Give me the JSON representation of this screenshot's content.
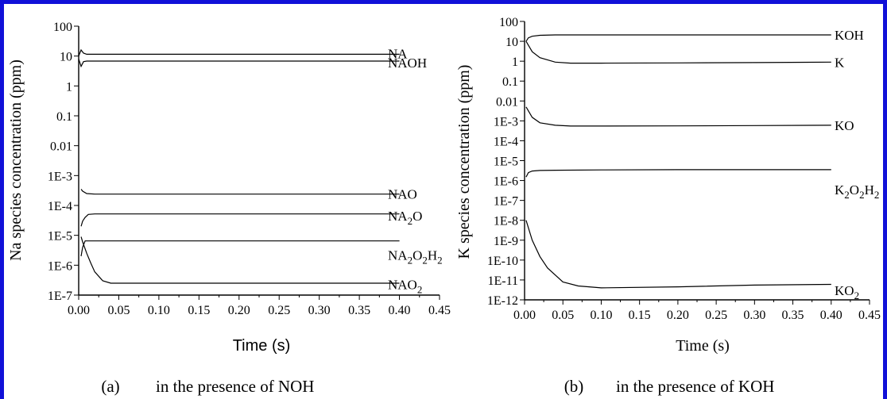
{
  "chart_data": [
    {
      "type": "line",
      "panel": "a",
      "caption_tag": "(a)",
      "caption": "in the presence of NOH",
      "xlabel": "Time (s)",
      "ylabel": "Na species concentration (ppm)",
      "xlim": [
        0,
        0.45
      ],
      "ylim": [
        1e-07,
        100
      ],
      "y_scale": "log",
      "x_ticks": [
        "0.00",
        "0.05",
        "0.10",
        "0.15",
        "0.20",
        "0.25",
        "0.30",
        "0.35",
        "0.40",
        "0.45"
      ],
      "x_tick_values": [
        0,
        0.05,
        0.1,
        0.15,
        0.2,
        0.25,
        0.3,
        0.35,
        0.4,
        0.45
      ],
      "y_ticks": [
        "100",
        "10",
        "1",
        "0.1",
        "0.01",
        "1E-3",
        "1E-4",
        "1E-5",
        "1E-6",
        "1E-7"
      ],
      "y_tick_values": [
        100,
        10,
        1,
        0.1,
        0.01,
        0.001,
        0.0001,
        1e-05,
        1e-06,
        1e-07
      ],
      "series": [
        {
          "name": "NA",
          "x": [
            0,
            0.003,
            0.006,
            0.01,
            0.05,
            0.1,
            0.2,
            0.3,
            0.4
          ],
          "y": [
            10,
            16,
            12.5,
            11.5,
            11.5,
            11.5,
            11.5,
            11.5,
            11.5
          ],
          "label_y": 12
        },
        {
          "name": "NAOH",
          "x": [
            0,
            0.003,
            0.006,
            0.01,
            0.05,
            0.1,
            0.2,
            0.3,
            0.4
          ],
          "y": [
            8,
            4.5,
            6.5,
            6.8,
            6.8,
            6.8,
            6.8,
            6.8,
            6.8
          ],
          "label_y": 6
        },
        {
          "name": "NAO",
          "x": [
            0.003,
            0.005,
            0.01,
            0.02,
            0.1,
            0.2,
            0.3,
            0.4
          ],
          "y": [
            0.00035,
            0.0003,
            0.00025,
            0.00024,
            0.00024,
            0.00024,
            0.00024,
            0.00024
          ],
          "label_y": 0.00024
        },
        {
          "name": "NA₂O",
          "x": [
            0.003,
            0.005,
            0.008,
            0.012,
            0.02,
            0.1,
            0.2,
            0.3,
            0.4
          ],
          "y": [
            2e-05,
            3e-05,
            4e-05,
            5e-05,
            5.2e-05,
            5.2e-05,
            5.2e-05,
            5.2e-05,
            5.2e-05
          ],
          "label_y": 4.5e-05
        },
        {
          "name": "NA₂O₂H₂",
          "x": [
            0.003,
            0.005,
            0.008,
            0.012,
            0.02,
            0.1,
            0.2,
            0.3,
            0.4
          ],
          "y": [
            2e-06,
            4e-06,
            6.5e-06,
            6.5e-06,
            6.5e-06,
            6.5e-06,
            6.5e-06,
            6.5e-06,
            6.5e-06
          ],
          "label_y": 2.2e-06
        },
        {
          "name": "NAO₂",
          "x": [
            0.003,
            0.005,
            0.01,
            0.015,
            0.02,
            0.03,
            0.04,
            0.1,
            0.2,
            0.3,
            0.4
          ],
          "y": [
            9e-06,
            6e-06,
            2.5e-06,
            1.2e-06,
            6e-07,
            3e-07,
            2.5e-07,
            2.5e-07,
            2.5e-07,
            2.5e-07,
            2.5e-07
          ],
          "label_y": 2.3e-07
        }
      ]
    },
    {
      "type": "line",
      "panel": "b",
      "caption_tag": "(b)",
      "caption": "in the presence of KOH",
      "xlabel": "Time (s)",
      "ylabel": "K species concentration (ppm)",
      "xlim": [
        0,
        0.45
      ],
      "ylim": [
        1e-12,
        100
      ],
      "y_scale": "log",
      "x_ticks": [
        "0.00",
        "0.05",
        "0.10",
        "0.15",
        "0.20",
        "0.25",
        "0.30",
        "0.35",
        "0.40",
        "0.45"
      ],
      "x_tick_values": [
        0,
        0.05,
        0.1,
        0.15,
        0.2,
        0.25,
        0.3,
        0.35,
        0.4,
        0.45
      ],
      "y_ticks": [
        "100",
        "10",
        "1",
        "0.1",
        "0.01",
        "1E-3",
        "1E-4",
        "1E-5",
        "1E-6",
        "1E-7",
        "1E-8",
        "1E-9",
        "1E-10",
        "1E-11",
        "1E-12"
      ],
      "y_tick_values": [
        100,
        10,
        1,
        0.1,
        0.01,
        0.001,
        0.0001,
        1e-05,
        1e-06,
        1e-07,
        1e-08,
        1e-09,
        1e-10,
        1e-11,
        1e-12
      ],
      "series": [
        {
          "name": "KOH",
          "x": [
            0.002,
            0.005,
            0.01,
            0.02,
            0.04,
            0.1,
            0.2,
            0.3,
            0.4
          ],
          "y": [
            10,
            15,
            18,
            20,
            21,
            21,
            21,
            21,
            21
          ],
          "label_y": 21
        },
        {
          "name": "K",
          "x": [
            0.002,
            0.01,
            0.02,
            0.04,
            0.06,
            0.1,
            0.2,
            0.3,
            0.4
          ],
          "y": [
            10,
            3,
            1.5,
            0.9,
            0.8,
            0.8,
            0.82,
            0.85,
            0.9
          ],
          "label_y": 0.9
        },
        {
          "name": "KO",
          "x": [
            0.002,
            0.01,
            0.02,
            0.04,
            0.06,
            0.1,
            0.2,
            0.3,
            0.4
          ],
          "y": [
            0.005,
            0.0015,
            0.0008,
            0.0006,
            0.00055,
            0.00055,
            0.00056,
            0.00058,
            0.0006
          ],
          "label_y": 0.0006
        },
        {
          "name": "K₂O₂H₂",
          "x": [
            0.002,
            0.005,
            0.01,
            0.02,
            0.04,
            0.1,
            0.2,
            0.3,
            0.4
          ],
          "y": [
            1.5e-06,
            2.5e-06,
            3e-06,
            3.2e-06,
            3.3e-06,
            3.4e-06,
            3.5e-06,
            3.5e-06,
            3.5e-06
          ],
          "label_y": 3.5e-07
        },
        {
          "name": "KO₂",
          "x": [
            0.002,
            0.01,
            0.02,
            0.03,
            0.05,
            0.07,
            0.1,
            0.2,
            0.3,
            0.4
          ],
          "y": [
            1e-08,
            1e-09,
            1.5e-10,
            4e-11,
            8e-12,
            5e-12,
            4e-12,
            4.5e-12,
            5.5e-12,
            6e-12
          ],
          "label_y": 3e-12
        }
      ]
    }
  ]
}
